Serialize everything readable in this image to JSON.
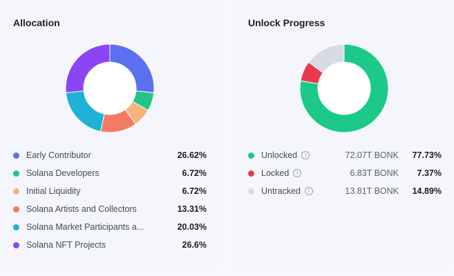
{
  "allocation": {
    "title": "Allocation",
    "chart_data": {
      "type": "pie",
      "style": "donut",
      "series": [
        {
          "label": "Early Contributor",
          "percent": "26.62%",
          "value": 26.62,
          "color": "#5b6ff0"
        },
        {
          "label": "Solana Developers",
          "percent": "6.72%",
          "value": 6.72,
          "color": "#24c386"
        },
        {
          "label": "Initial Liquidity",
          "percent": "6.72%",
          "value": 6.72,
          "color": "#f5b27d"
        },
        {
          "label": "Solana Artists and Collectors",
          "percent": "13.31%",
          "value": 13.31,
          "color": "#f47b63"
        },
        {
          "label": "Solana Market Participants a...",
          "percent": "20.03%",
          "value": 20.03,
          "color": "#1eb2d6"
        },
        {
          "label": "Solana NFT Projects",
          "percent": "26.6%",
          "value": 26.6,
          "color": "#8b45f5"
        }
      ]
    }
  },
  "unlock": {
    "title": "Unlock Progress",
    "chart_data": {
      "type": "pie",
      "style": "donut",
      "series": [
        {
          "label": "Unlocked",
          "amount": "72.07T BONK",
          "percent": "77.73%",
          "value": 77.73,
          "color": "#1bc98a",
          "info_icon": "info-icon"
        },
        {
          "label": "Locked",
          "amount": "6.83T BONK",
          "percent": "7.37%",
          "value": 7.37,
          "color": "#e83a4e",
          "info_icon": "info-icon"
        },
        {
          "label": "Untracked",
          "amount": "13.81T BONK",
          "percent": "14.89%",
          "value": 14.89,
          "color": "#d6dbe4",
          "info_icon": "info-icon"
        }
      ]
    }
  }
}
